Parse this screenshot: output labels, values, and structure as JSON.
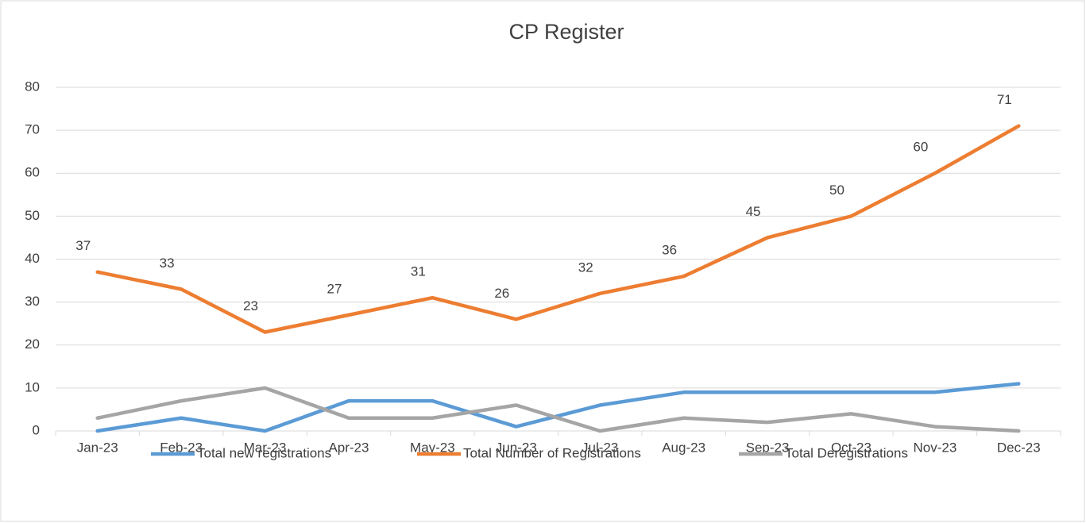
{
  "chart_data": {
    "type": "line",
    "title": "CP Register",
    "categories": [
      "Jan-23",
      "Feb-23",
      "Mar-23",
      "Apr-23",
      "May-23",
      "Jun-23",
      "Jul-23",
      "Aug-23",
      "Sep-23",
      "Oct-23",
      "Nov-23",
      "Dec-23"
    ],
    "series": [
      {
        "name": "Total new registrations",
        "color": "#5b9bd5",
        "values": [
          0,
          3,
          0,
          7,
          7,
          1,
          6,
          9,
          9,
          9,
          9,
          11
        ],
        "data_labels": false
      },
      {
        "name": "Total Number of Registrations",
        "color": "#ed7d31",
        "values": [
          37,
          33,
          23,
          27,
          31,
          26,
          32,
          36,
          45,
          50,
          60,
          71
        ],
        "data_labels": true
      },
      {
        "name": "Total Deregistrations",
        "color": "#a5a5a5",
        "values": [
          3,
          7,
          10,
          3,
          3,
          6,
          0,
          3,
          2,
          4,
          1,
          0
        ],
        "data_labels": false
      }
    ],
    "ylim": [
      0,
      80
    ],
    "yticks": [
      0,
      10,
      20,
      30,
      40,
      50,
      60,
      70,
      80
    ],
    "grid": true,
    "legend": "bottom"
  }
}
